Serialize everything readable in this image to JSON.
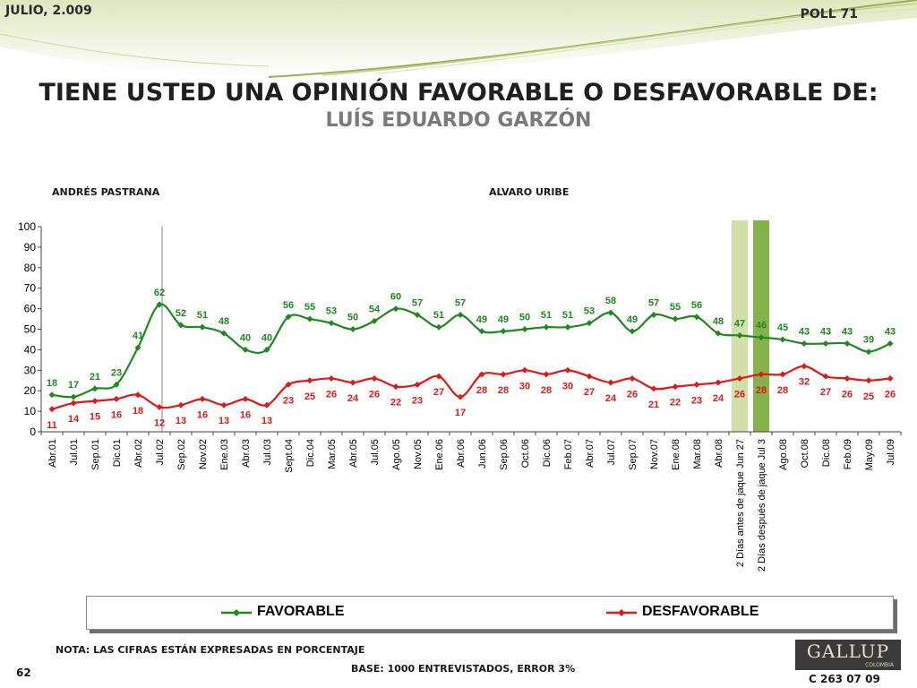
{
  "header": {
    "date": "JULIO, 2.009",
    "poll": "POLL 71"
  },
  "title": {
    "line1": "TIENE USTED UNA OPINIÓN FAVORABLE O DESFAVORABLE DE:",
    "line2": "LUÍS EDUARDO GARZÓN"
  },
  "eras": {
    "first": "ANDRÉS  PASTRANA",
    "second": "ALVARO URIBE"
  },
  "footer": {
    "nota": "NOTA: LAS CIFRAS ESTÁN EXPRESADAS EN PORCENTAJE",
    "base": "BASE: 1000 ENTREVISTADOS, ERROR 3%",
    "page": "62",
    "code": "C 263 07 09",
    "logo": "GALLUP",
    "logo_sub": "COLOMBIA"
  },
  "colors": {
    "favorable": "#1e8a1e",
    "desfavorable": "#e01818",
    "band_light": "#cfe0a8",
    "band_dark": "#86b24a",
    "divider": "#8f97c0"
  },
  "chart_data": {
    "type": "line",
    "categories": [
      "Abr.01",
      "Jul.01",
      "Sep.01",
      "Dic.01",
      "Abr.02",
      "Jul.02",
      "Sep.02",
      "Nov.02",
      "Ene.03",
      "Abr.03",
      "Jul.03",
      "Sept.04",
      "Dic.04",
      "Mar.05",
      "Abr.05",
      "Jul.05",
      "Ago.05",
      "Nov.05",
      "Ene.06",
      "Abr.06",
      "Jun.06",
      "Sep.06",
      "Oct.06",
      "Dic.06",
      "Feb.07",
      "Abr.07",
      "Jul.07",
      "Sep.07",
      "Nov.07",
      "Ene.08",
      "Mar.08",
      "Abr.08",
      "2 Días antes de jaque Jun 27",
      "2 Días después de jaque Jul 3",
      "Ago.08",
      "Oct.08",
      "Dic.08",
      "Feb.09",
      "May.09",
      "Jul.09"
    ],
    "series": [
      {
        "name": "FAVORABLE",
        "values": [
          18,
          17,
          21,
          23,
          41,
          62,
          52,
          51,
          48,
          40,
          40,
          56,
          55,
          53,
          50,
          54,
          60,
          57,
          51,
          57,
          49,
          49,
          50,
          51,
          51,
          53,
          58,
          49,
          57,
          55,
          56,
          48,
          47,
          46,
          45,
          43,
          43,
          43,
          39,
          43
        ]
      },
      {
        "name": "DESFAVORABLE",
        "values": [
          11,
          14,
          15,
          16,
          18,
          12,
          13,
          16,
          13,
          16,
          13,
          23,
          25,
          26,
          24,
          26,
          22,
          23,
          27,
          17,
          28,
          28,
          30,
          28,
          30,
          27,
          24,
          26,
          21,
          22,
          23,
          24,
          26,
          28,
          28,
          32,
          27,
          26,
          25,
          26
        ]
      }
    ],
    "y_ticks": [
      "0",
      "10",
      "20",
      "30",
      "40",
      "50",
      "60",
      "70",
      "80",
      "90",
      "100"
    ],
    "ylim": [
      0,
      100
    ],
    "legend": "bottom",
    "grid": false,
    "highlight_categories": [
      "2 Días antes de jaque Jun 27",
      "2 Días después de jaque Jul 3"
    ],
    "divider_after_category": "Jul.02"
  }
}
